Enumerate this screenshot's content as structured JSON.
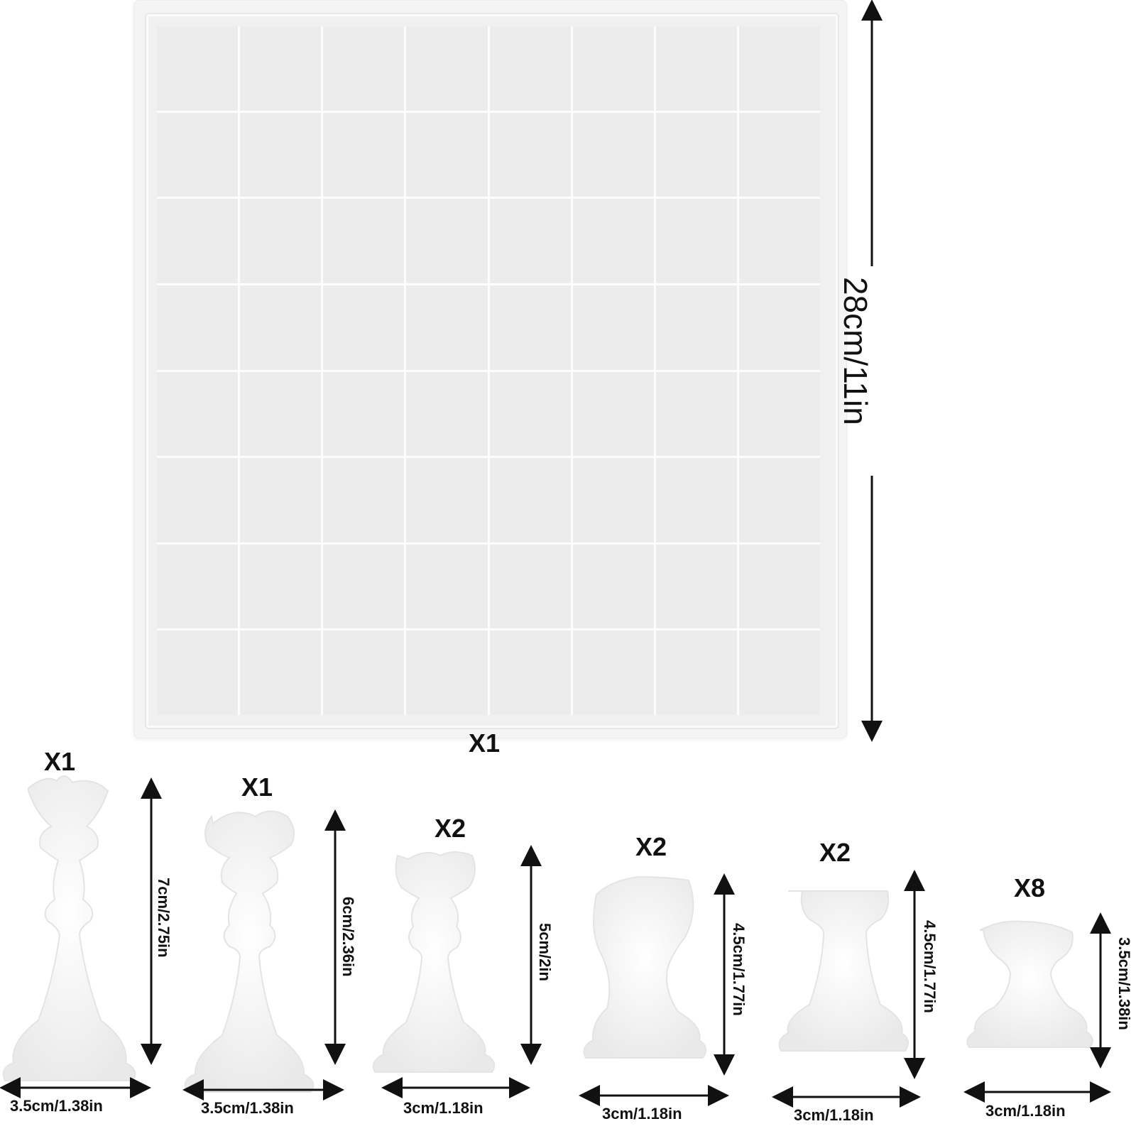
{
  "board": {
    "quantity": "X1",
    "height_label": "28cm/11in",
    "rows": 8,
    "cols": 8
  },
  "pieces": [
    {
      "name": "king",
      "quantity": "X1",
      "height_label": "7cm/2.75in",
      "width_label": "3.5cm/1.38in"
    },
    {
      "name": "queen",
      "quantity": "X1",
      "height_label": "6cm/2.36in",
      "width_label": "3.5cm/1.38in"
    },
    {
      "name": "bishop",
      "quantity": "X2",
      "height_label": "5cm/2in",
      "width_label": "3cm/1.18in"
    },
    {
      "name": "knight",
      "quantity": "X2",
      "height_label": "4.5cm/1.77in",
      "width_label": "3cm/1.18in"
    },
    {
      "name": "rook",
      "quantity": "X2",
      "height_label": "4.5cm/1.77in",
      "width_label": "3cm/1.18in"
    },
    {
      "name": "pawn",
      "quantity": "X8",
      "height_label": "3.5cm/1.38in",
      "width_label": "3cm/1.18in"
    }
  ],
  "colors": {
    "mold": "#f2f2f2",
    "ink": "#111111"
  }
}
